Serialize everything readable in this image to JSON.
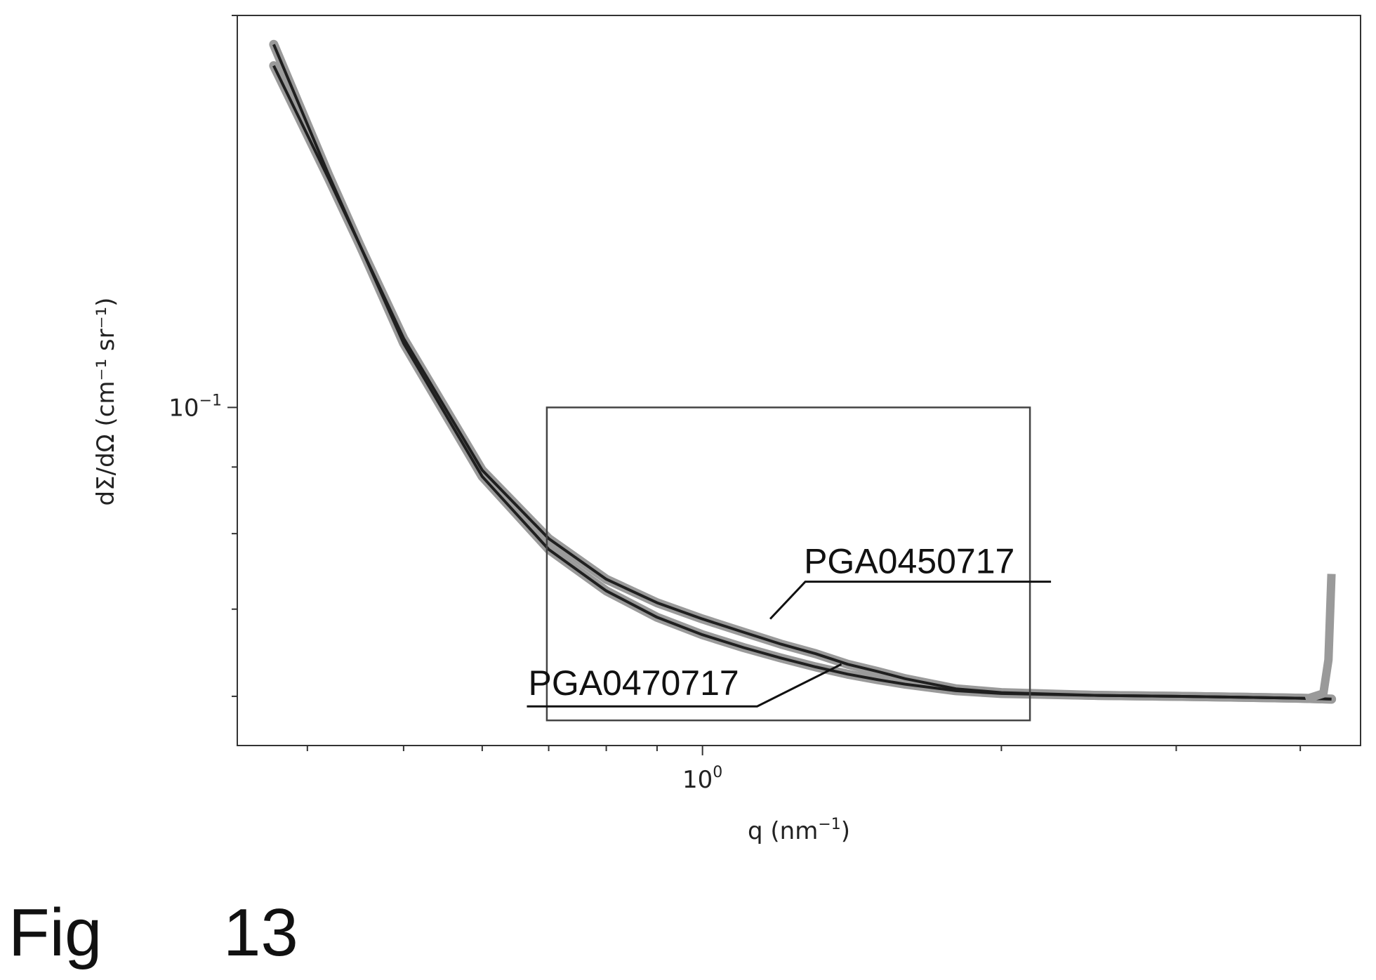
{
  "chart_data": {
    "type": "line",
    "xlabel_base": "q (nm",
    "xlabel_exp": "−1",
    "xlabel_close": ")",
    "ylabel": "dΣ/dΩ (cm⁻¹ sr⁻¹)",
    "x_scale": "log",
    "y_scale": "log",
    "xlim": [
      0.34,
      4.6
    ],
    "ylim": [
      0.055,
      0.2
    ],
    "x_tick_labels": [
      {
        "value": 1,
        "base": "10",
        "exp": "0"
      }
    ],
    "y_tick_labels": [
      {
        "value": 0.1,
        "base": "10",
        "exp": "−1"
      }
    ],
    "grid": false,
    "legend": "none",
    "series": [
      {
        "name": "PGA0450717",
        "x": [
          0.37,
          0.42,
          0.5,
          0.6,
          0.7,
          0.8,
          0.9,
          1.0,
          1.1,
          1.2,
          1.3,
          1.4,
          1.5,
          1.6,
          1.8,
          2.0,
          2.5,
          3.0,
          3.5,
          4.0,
          4.3
        ],
        "y": [
          0.183,
          0.15,
          0.113,
          0.0895,
          0.0793,
          0.0738,
          0.0708,
          0.0688,
          0.0672,
          0.0658,
          0.0647,
          0.0635,
          0.0627,
          0.0619,
          0.0608,
          0.0604,
          0.0601,
          0.06,
          0.0599,
          0.0598,
          0.0597
        ]
      },
      {
        "name": "PGA0470717",
        "x": [
          0.37,
          0.42,
          0.5,
          0.6,
          0.7,
          0.8,
          0.9,
          1.0,
          1.1,
          1.2,
          1.3,
          1.4,
          1.5,
          1.6,
          1.8,
          2.0,
          2.5,
          3.0,
          3.5,
          4.0,
          4.3
        ],
        "y": [
          0.19,
          0.151,
          0.112,
          0.0885,
          0.0778,
          0.0723,
          0.069,
          0.0669,
          0.0654,
          0.0642,
          0.0632,
          0.0624,
          0.0618,
          0.0613,
          0.0606,
          0.0603,
          0.0601,
          0.06,
          0.0599,
          0.0598,
          0.0597
        ]
      }
    ],
    "annotations": [
      {
        "text": "PGA0450717",
        "x": 1.17,
        "y": 0.0688
      },
      {
        "text": "PGA0470717",
        "x": 1.38,
        "y": 0.0635
      }
    ],
    "highlight_box": {
      "x": [
        0.697,
        2.137
      ],
      "y": [
        0.0575,
        0.1
      ]
    }
  },
  "figure_label": {
    "prefix": "Fig",
    "number": "13"
  }
}
